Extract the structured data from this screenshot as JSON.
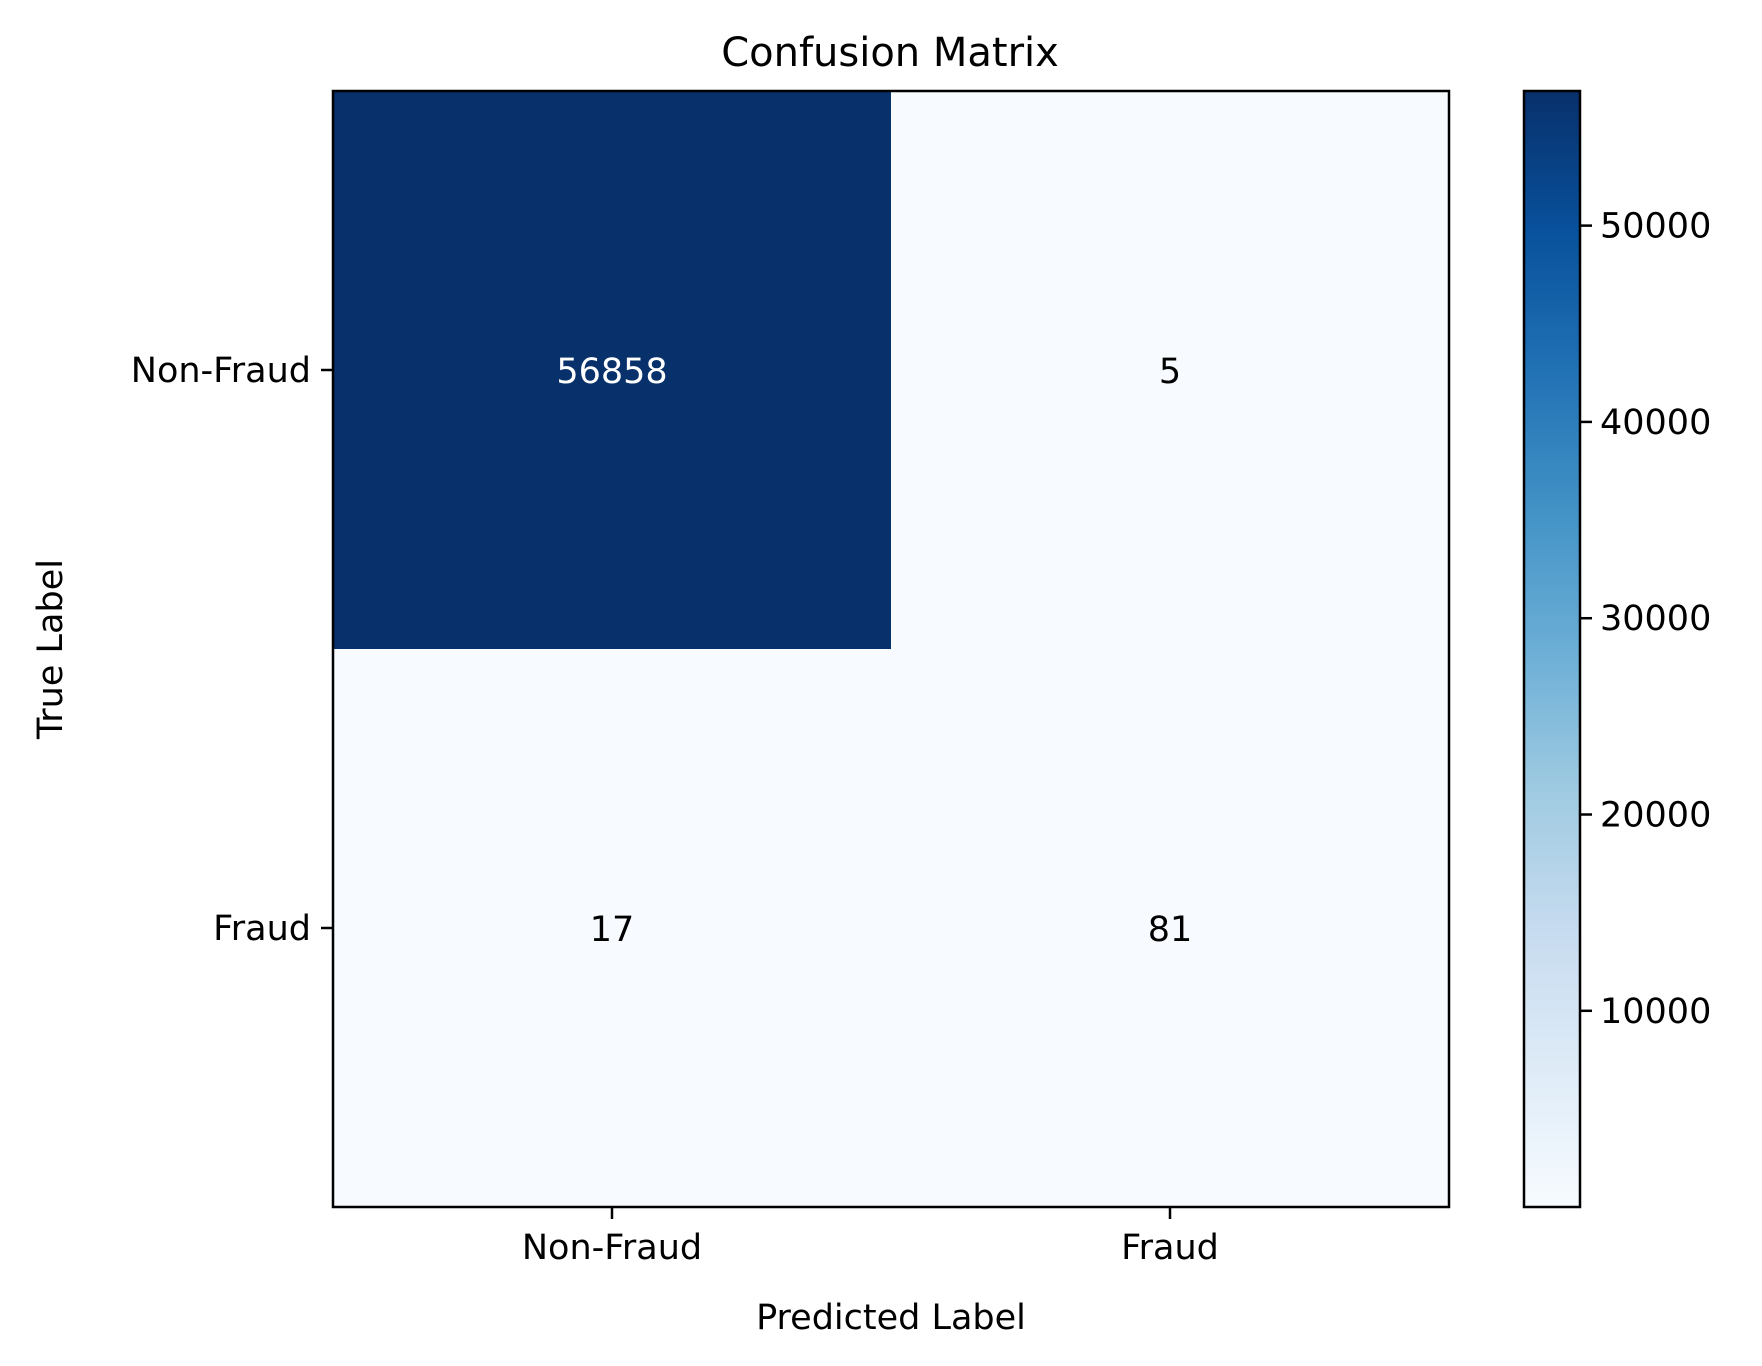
{
  "chart_data": {
    "type": "heatmap",
    "title": "Confusion Matrix",
    "xlabel": "Predicted Label",
    "ylabel": "True Label",
    "x_categories": [
      "Non-Fraud",
      "Fraud"
    ],
    "y_categories": [
      "Non-Fraud",
      "Fraud"
    ],
    "values": [
      [
        56858,
        5
      ],
      [
        17,
        81
      ]
    ],
    "colormap": "Blues",
    "colorbar": {
      "min": 5,
      "max": 56858,
      "ticks": [
        10000,
        20000,
        30000,
        40000,
        50000
      ]
    },
    "colors": {
      "low": "#f7fbff",
      "high": "#08306b",
      "text_dark": "#000000",
      "text_light": "#ffffff"
    }
  }
}
